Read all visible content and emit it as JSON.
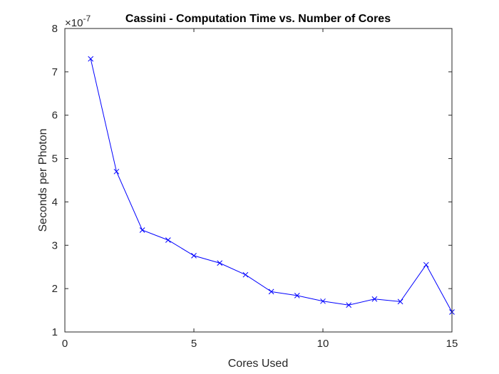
{
  "chart_data": {
    "type": "line",
    "title": "Cassini - Computation Time vs. Number of Cores",
    "xlabel": "Cores Used",
    "ylabel": "Seconds per Photon",
    "y_exponent_prefix": "×10",
    "y_exponent_power": "-7",
    "xlim": [
      0,
      15
    ],
    "ylim": [
      1,
      8
    ],
    "xticks": [
      0,
      5,
      10,
      15
    ],
    "yticks": [
      1,
      2,
      3,
      4,
      5,
      6,
      7,
      8
    ],
    "grid": false,
    "legend": "none",
    "marker": "x",
    "series_color": "#0000ff",
    "series": [
      {
        "x": [
          1,
          2,
          3,
          4,
          5,
          6,
          7,
          8,
          9,
          10,
          11,
          12,
          13,
          14,
          15
        ],
        "values": [
          7.3,
          4.7,
          3.35,
          3.12,
          2.76,
          2.59,
          2.32,
          1.93,
          1.84,
          1.71,
          1.62,
          1.76,
          1.7,
          2.55,
          1.46
        ]
      }
    ]
  }
}
